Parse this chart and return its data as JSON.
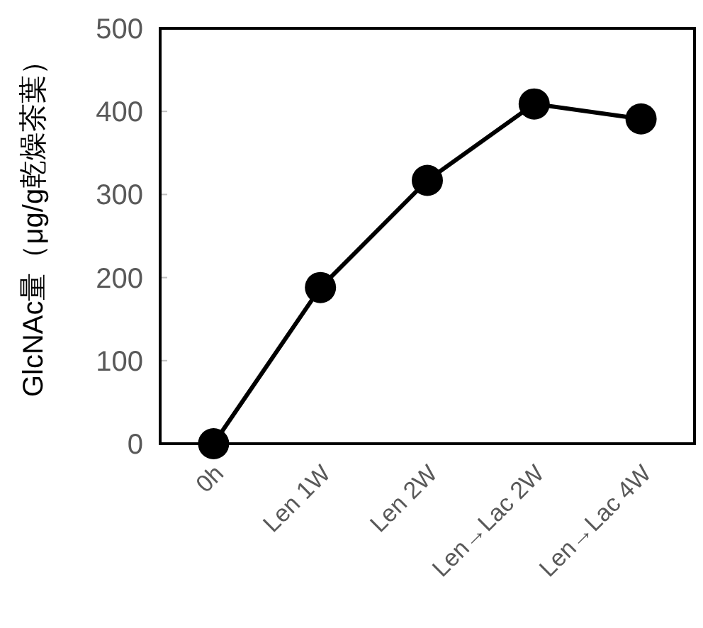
{
  "chart_data": {
    "type": "line",
    "ylabel": "GlcNAc量（μg/g乾燥茶葉）",
    "categories": [
      "0h",
      "Len 1W",
      "Len 2W",
      "Len→Lac 2W",
      "Len→Lac 4W"
    ],
    "series": [
      {
        "color": "#000000",
        "values": [
          0,
          188,
          317,
          409,
          391
        ]
      }
    ],
    "ylim": [
      0,
      500
    ],
    "yticks": [
      0,
      100,
      200,
      300,
      400,
      500
    ],
    "marker": "circle",
    "line_style": "solid",
    "grid": false
  }
}
